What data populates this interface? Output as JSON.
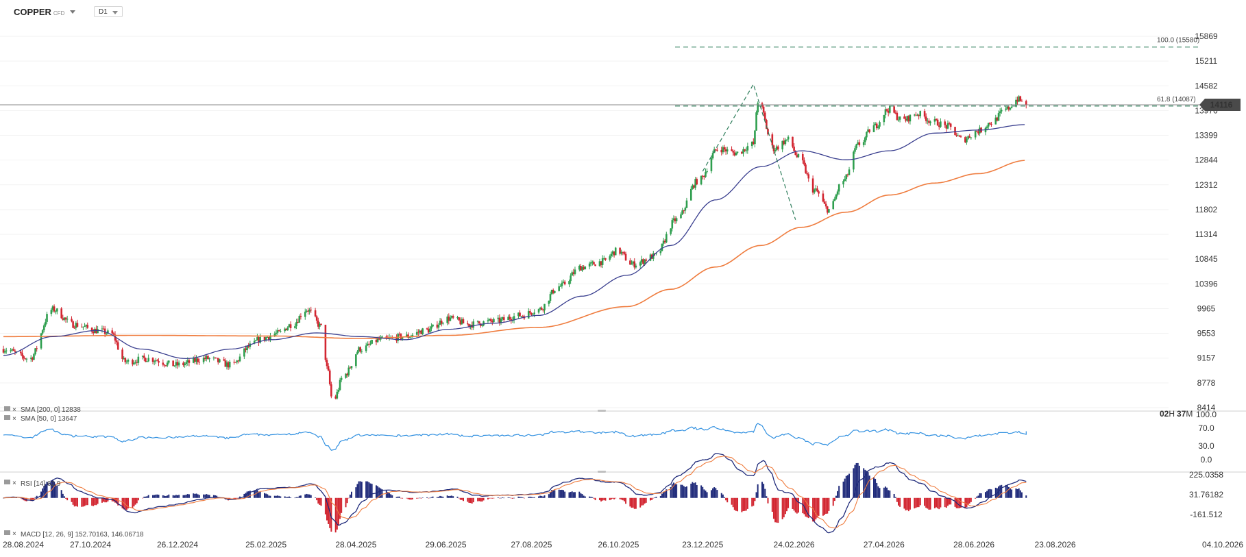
{
  "header": {
    "symbol": "COPPER",
    "symbol_type": "CFD",
    "timeframe": "D1"
  },
  "colors": {
    "bull": "#2e9e4e",
    "bear": "#d22530",
    "sma50": "#3a3f8f",
    "sma200": "#ef7c3e",
    "rsi": "#2f8fe0",
    "macd_line": "#1f2a7a",
    "signal_line": "#ef7c3e",
    "fib": "#2c7d5a",
    "zigzag": "#2c7d5a",
    "price_tag": "#4a4a4a",
    "countdown": "#f2a324"
  },
  "price_tag": "14116",
  "countdown": {
    "h_value": "02",
    "h_unit": "H",
    "m_value": "37",
    "m_unit": "M"
  },
  "fib_levels": [
    {
      "label": "100.0 (15580)",
      "value": 15580
    },
    {
      "label": "61.8 (14087)",
      "value": 14087
    }
  ],
  "indicators": {
    "sma200": "SMA [200, 0] 12838",
    "sma50": "SMA [50, 0] 13647",
    "rsi": "RSI [14] 62.9",
    "macd": "MACD [12, 26, 9] 152.70163, 146.06718"
  },
  "chart_data": [
    {
      "type": "candlestick",
      "y_ticks": [
        "15869",
        "15211",
        "14582",
        "13976",
        "13399",
        "12844",
        "12312",
        "11802",
        "11314",
        "10845",
        "10396",
        "9965",
        "9553",
        "9157",
        "8778",
        "8414"
      ],
      "x_ticks": [
        "28.08.2024",
        "27.10.2024",
        "26.12.2024",
        "25.02.2025",
        "28.04.2025",
        "29.06.2025",
        "27.08.2025",
        "26.10.2025",
        "23.12.2025",
        "24.02.2026",
        "27.04.2026",
        "28.06.2026",
        "23.08.2026",
        "04.10.2026"
      ],
      "last_price": 14116,
      "fib_projection": {
        "points": [
          {
            "date": "23.12.2025",
            "price": 12600
          },
          {
            "date": "27.01.2026",
            "price": 14620
          },
          {
            "date": "25.02.2026",
            "price": 11600
          }
        ],
        "levels": {
          "61.8": 14087,
          "100.0": 15580
        }
      },
      "anchors": [
        [
          "28.08.2024",
          9300
        ],
        [
          "15.09.2024",
          9150
        ],
        [
          "01.10.2024",
          9950
        ],
        [
          "15.10.2024",
          9700
        ],
        [
          "01.11.2024",
          9600
        ],
        [
          "10.11.2024",
          9550
        ],
        [
          "20.11.2024",
          9100
        ],
        [
          "05.12.2024",
          9150
        ],
        [
          "25.12.2024",
          9050
        ],
        [
          "15.01.2025",
          9150
        ],
        [
          "01.02.2025",
          9050
        ],
        [
          "15.02.2025",
          9350
        ],
        [
          "20.02.2025",
          9450
        ],
        [
          "05.03.2025",
          9550
        ],
        [
          "15.03.2025",
          9700
        ],
        [
          "25.03.2025",
          9950
        ],
        [
          "05.04.2025",
          9650
        ],
        [
          "08.04.2025",
          9000
        ],
        [
          "12.04.2025",
          8500
        ],
        [
          "20.04.2025",
          8900
        ],
        [
          "01.05.2025",
          9300
        ],
        [
          "15.05.2025",
          9450
        ],
        [
          "01.06.2025",
          9500
        ],
        [
          "15.06.2025",
          9600
        ],
        [
          "01.07.2025",
          9800
        ],
        [
          "15.07.2025",
          9700
        ],
        [
          "01.08.2025",
          9750
        ],
        [
          "20.08.2025",
          9850
        ],
        [
          "01.09.2025",
          9950
        ],
        [
          "15.09.2025",
          10350
        ],
        [
          "01.10.2025",
          10700
        ],
        [
          "15.10.2025",
          10800
        ],
        [
          "25.10.2025",
          11000
        ],
        [
          "05.11.2025",
          10750
        ],
        [
          "20.11.2025",
          10900
        ],
        [
          "05.12.2025",
          11600
        ],
        [
          "20.12.2025",
          12400
        ],
        [
          "03.01.2026",
          13100
        ],
        [
          "15.01.2026",
          13000
        ],
        [
          "27.01.2026",
          13200
        ],
        [
          "30.01.2026",
          14200
        ],
        [
          "10.02.2026",
          13100
        ],
        [
          "20.02.2026",
          13300
        ],
        [
          "27.02.2026",
          12900
        ],
        [
          "10.03.2026",
          12200
        ],
        [
          "20.03.2026",
          11800
        ],
        [
          "30.03.2026",
          12400
        ],
        [
          "10.04.2026",
          13200
        ],
        [
          "20.04.2026",
          13600
        ],
        [
          "30.04.2026",
          14000
        ],
        [
          "10.05.2026",
          13750
        ],
        [
          "20.05.2026",
          13900
        ],
        [
          "01.06.2026",
          13700
        ],
        [
          "10.06.2026",
          13600
        ],
        [
          "20.06.2026",
          13300
        ],
        [
          "01.07.2026",
          13500
        ],
        [
          "10.07.2026",
          13700
        ],
        [
          "20.07.2026",
          14000
        ],
        [
          "28.07.2026",
          14250
        ],
        [
          "03.08.2026",
          14116
        ]
      ],
      "sma200_anchors": [
        [
          "28.08.2024",
          9500
        ],
        [
          "01.12.2024",
          9520
        ],
        [
          "01.03.2025",
          9510
        ],
        [
          "01.05.2025",
          9470
        ],
        [
          "01.07.2025",
          9520
        ],
        [
          "01.09.2025",
          9650
        ],
        [
          "01.11.2025",
          10000
        ],
        [
          "01.12.2025",
          10300
        ],
        [
          "01.01.2026",
          10700
        ],
        [
          "01.02.2026",
          11100
        ],
        [
          "01.03.2026",
          11450
        ],
        [
          "01.04.2026",
          11750
        ],
        [
          "01.05.2026",
          12100
        ],
        [
          "01.06.2026",
          12350
        ],
        [
          "01.07.2026",
          12550
        ],
        [
          "03.08.2026",
          12838
        ]
      ],
      "sma50_anchors": [
        [
          "28.08.2024",
          9200
        ],
        [
          "01.10.2024",
          9500
        ],
        [
          "01.11.2024",
          9600
        ],
        [
          "01.12.2024",
          9300
        ],
        [
          "01.01.2025",
          9150
        ],
        [
          "01.02.2025",
          9300
        ],
        [
          "01.03.2025",
          9450
        ],
        [
          "01.04.2025",
          9560
        ],
        [
          "01.05.2025",
          9500
        ],
        [
          "01.06.2025",
          9450
        ],
        [
          "01.07.2025",
          9620
        ],
        [
          "01.08.2025",
          9720
        ],
        [
          "01.09.2025",
          9850
        ],
        [
          "01.10.2025",
          10180
        ],
        [
          "01.11.2025",
          10550
        ],
        [
          "01.12.2025",
          11100
        ],
        [
          "01.01.2026",
          12000
        ],
        [
          "01.02.2026",
          12700
        ],
        [
          "01.03.2026",
          13050
        ],
        [
          "01.04.2026",
          12850
        ],
        [
          "01.05.2026",
          13050
        ],
        [
          "01.06.2026",
          13450
        ],
        [
          "01.07.2026",
          13520
        ],
        [
          "03.08.2026",
          13647
        ]
      ]
    },
    {
      "type": "line",
      "y_ticks": [
        "100.0",
        "70.0",
        "30.0",
        "0.0"
      ],
      "ylim": [
        0,
        100
      ],
      "last_value": 62.9
    },
    {
      "type": "bar",
      "y_ticks": [
        "225.0358",
        "31.76182",
        "-161.512"
      ],
      "macd_last": 152.70163,
      "signal_last": 146.06718
    }
  ]
}
